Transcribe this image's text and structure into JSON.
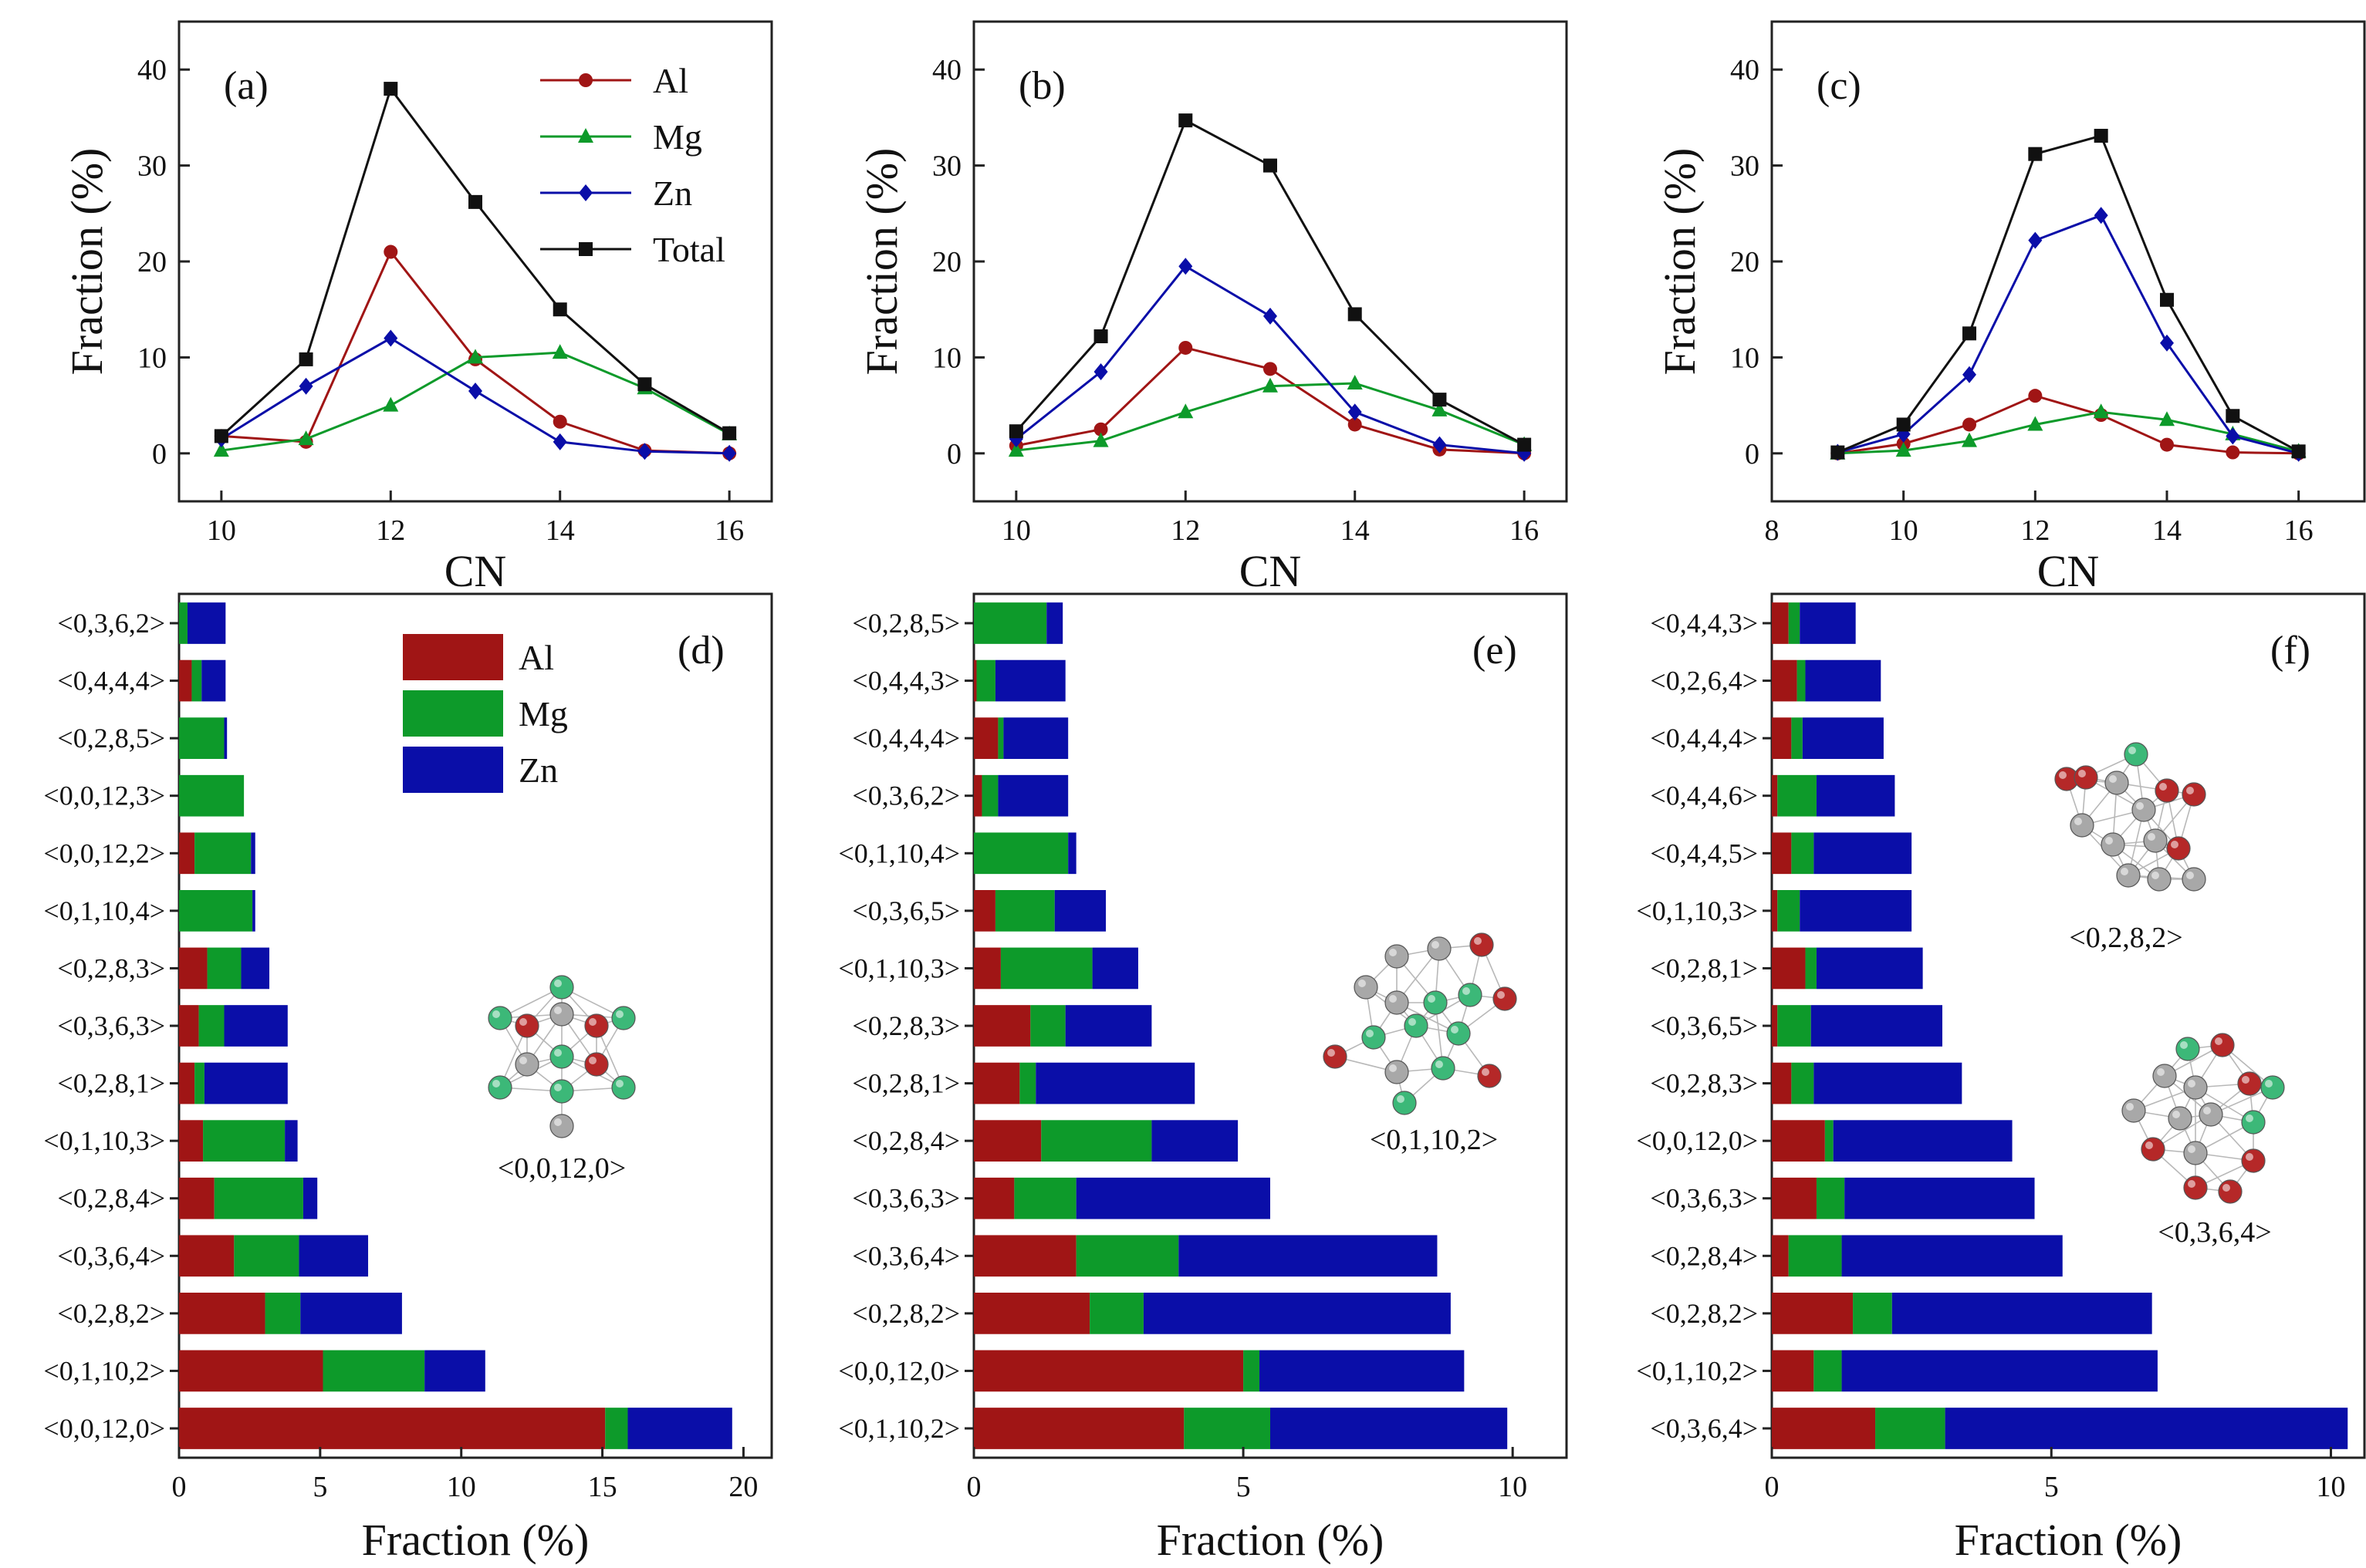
{
  "colors": {
    "Al": "#a01515",
    "Mg": "#0d9a2a",
    "Zn": "#0a0ea8",
    "Total": "#111111",
    "atom_al": "#b52828",
    "atom_mg": "#3cb878",
    "atom_gray": "#a8a8a8"
  },
  "chart_data": [
    {
      "id": "a",
      "type": "line",
      "panel_label": "(a)",
      "xlabel": "CN",
      "ylabel": "Fraction (%)",
      "xlim": [
        9.5,
        16.5
      ],
      "ylim": [
        -5,
        45
      ],
      "xticks": [
        10,
        12,
        14,
        16
      ],
      "yticks": [
        0,
        10,
        20,
        30,
        40
      ],
      "legend": true,
      "x": [
        10,
        11,
        12,
        13,
        14,
        15,
        16
      ],
      "series": [
        {
          "name": "Al",
          "marker": "circle",
          "values": [
            1.8,
            1.2,
            21.0,
            9.8,
            3.3,
            0.3,
            0.0
          ]
        },
        {
          "name": "Mg",
          "marker": "triangle",
          "values": [
            0.3,
            1.5,
            5.0,
            10.0,
            10.5,
            6.8,
            2.0
          ]
        },
        {
          "name": "Zn",
          "marker": "diamond",
          "values": [
            1.5,
            7.0,
            12.0,
            6.5,
            1.2,
            0.2,
            0.0
          ]
        },
        {
          "name": "Total",
          "marker": "square",
          "values": [
            1.8,
            9.8,
            38.0,
            26.2,
            15.0,
            7.2,
            2.1
          ]
        }
      ]
    },
    {
      "id": "b",
      "type": "line",
      "panel_label": "(b)",
      "xlabel": "CN",
      "ylabel": "Fraction (%)",
      "xlim": [
        9.5,
        16.5
      ],
      "ylim": [
        -5,
        45
      ],
      "xticks": [
        10,
        12,
        14,
        16
      ],
      "yticks": [
        0,
        10,
        20,
        30,
        40
      ],
      "legend": false,
      "x": [
        10,
        11,
        12,
        13,
        14,
        15,
        16
      ],
      "series": [
        {
          "name": "Al",
          "marker": "circle",
          "values": [
            0.8,
            2.5,
            11.0,
            8.8,
            3.0,
            0.4,
            0.0
          ]
        },
        {
          "name": "Mg",
          "marker": "triangle",
          "values": [
            0.3,
            1.3,
            4.3,
            7.0,
            7.3,
            4.5,
            0.9
          ]
        },
        {
          "name": "Zn",
          "marker": "diamond",
          "values": [
            1.5,
            8.5,
            19.5,
            14.3,
            4.3,
            0.9,
            0.0
          ]
        },
        {
          "name": "Total",
          "marker": "square",
          "values": [
            2.3,
            12.2,
            34.7,
            30.0,
            14.5,
            5.6,
            0.9
          ]
        }
      ]
    },
    {
      "id": "c",
      "type": "line",
      "panel_label": "(c)",
      "xlabel": "CN",
      "ylabel": "Fraction (%)",
      "xlim": [
        8,
        17
      ],
      "ylim": [
        -5,
        45
      ],
      "xticks": [
        8,
        10,
        12,
        14,
        16
      ],
      "yticks": [
        0,
        10,
        20,
        30,
        40
      ],
      "legend": false,
      "x": [
        9,
        10,
        11,
        12,
        13,
        14,
        15,
        16
      ],
      "series": [
        {
          "name": "Al",
          "marker": "circle",
          "values": [
            0.0,
            1.0,
            3.0,
            6.0,
            4.0,
            0.9,
            0.1,
            0.0
          ]
        },
        {
          "name": "Mg",
          "marker": "triangle",
          "values": [
            0.0,
            0.3,
            1.3,
            3.0,
            4.3,
            3.5,
            2.0,
            0.2
          ]
        },
        {
          "name": "Zn",
          "marker": "diamond",
          "values": [
            0.1,
            2.0,
            8.2,
            22.2,
            24.8,
            11.5,
            1.8,
            0.0
          ]
        },
        {
          "name": "Total",
          "marker": "square",
          "values": [
            0.1,
            3.0,
            12.5,
            31.2,
            33.1,
            16.0,
            3.9,
            0.2
          ]
        }
      ]
    },
    {
      "id": "d",
      "type": "bar",
      "orientation": "horizontal",
      "stacked": true,
      "panel_label": "(d)",
      "xlabel": "Fraction (%)",
      "xlim": [
        0,
        21
      ],
      "xticks": [
        0,
        5,
        10,
        15,
        20
      ],
      "legend": true,
      "categories": [
        "<0,3,6,2>",
        "<0,4,4,4>",
        "<0,2,8,5>",
        "<0,0,12,3>",
        "<0,0,12,2>",
        "<0,1,10,4>",
        "<0,2,8,3>",
        "<0,3,6,3>",
        "<0,2,8,1>",
        "<0,1,10,3>",
        "<0,2,8,4>",
        "<0,3,6,4>",
        "<0,2,8,2>",
        "<0,1,10,2>",
        "<0,0,12,0>"
      ],
      "series": [
        {
          "name": "Al",
          "values": [
            0.0,
            0.45,
            0.0,
            0.0,
            0.55,
            0.0,
            1.0,
            0.7,
            0.55,
            0.85,
            1.25,
            1.95,
            3.05,
            5.1,
            15.1
          ]
        },
        {
          "name": "Mg",
          "values": [
            0.3,
            0.35,
            1.6,
            2.3,
            2.0,
            2.6,
            1.2,
            0.9,
            0.35,
            2.9,
            3.15,
            2.3,
            1.25,
            3.6,
            0.8
          ]
        },
        {
          "name": "Zn",
          "values": [
            1.35,
            0.85,
            0.1,
            0.0,
            0.15,
            0.1,
            1.0,
            2.25,
            2.95,
            0.45,
            0.5,
            2.45,
            3.6,
            2.15,
            3.7
          ]
        }
      ],
      "cluster_labels": [
        "<0,0,12,0>"
      ]
    },
    {
      "id": "e",
      "type": "bar",
      "orientation": "horizontal",
      "stacked": true,
      "panel_label": "(e)",
      "xlabel": "Fraction (%)",
      "xlim": [
        0,
        11
      ],
      "xticks": [
        0,
        5,
        10
      ],
      "legend": false,
      "categories": [
        "<0,2,8,5>",
        "<0,4,4,3>",
        "<0,4,4,4>",
        "<0,3,6,2>",
        "<0,1,10,4>",
        "<0,3,6,5>",
        "<0,1,10,3>",
        "<0,2,8,3>",
        "<0,2,8,1>",
        "<0,2,8,4>",
        "<0,3,6,3>",
        "<0,3,6,4>",
        "<0,2,8,2>",
        "<0,0,12,0>",
        "<0,1,10,2>"
      ],
      "series": [
        {
          "name": "Al",
          "values": [
            0.0,
            0.05,
            0.45,
            0.15,
            0.0,
            0.4,
            0.5,
            1.05,
            0.85,
            1.25,
            0.75,
            1.9,
            2.15,
            5.0,
            3.9
          ]
        },
        {
          "name": "Mg",
          "values": [
            1.35,
            0.35,
            0.1,
            0.3,
            1.75,
            1.1,
            1.7,
            0.65,
            0.3,
            2.05,
            1.15,
            1.9,
            1.0,
            0.3,
            1.6
          ]
        },
        {
          "name": "Zn",
          "values": [
            0.3,
            1.3,
            1.2,
            1.3,
            0.15,
            0.95,
            0.85,
            1.6,
            2.95,
            1.6,
            3.6,
            4.8,
            5.7,
            3.8,
            4.4
          ]
        }
      ],
      "cluster_labels": [
        "<0,1,10,2>"
      ]
    },
    {
      "id": "f",
      "type": "bar",
      "orientation": "horizontal",
      "stacked": true,
      "panel_label": "(f)",
      "xlabel": "Fraction (%)",
      "xlim": [
        0,
        10.6
      ],
      "xticks": [
        0,
        5,
        10
      ],
      "legend": false,
      "categories": [
        "<0,4,4,3>",
        "<0,2,6,4>",
        "<0,4,4,4>",
        "<0,4,4,6>",
        "<0,4,4,5>",
        "<0,1,10,3>",
        "<0,2,8,1>",
        "<0,3,6,5>",
        "<0,2,8,3>",
        "<0,0,12,0>",
        "<0,3,6,3>",
        "<0,2,8,4>",
        "<0,2,8,2>",
        "<0,1,10,2>",
        "<0,3,6,4>"
      ],
      "series": [
        {
          "name": "Al",
          "values": [
            0.3,
            0.45,
            0.35,
            0.1,
            0.35,
            0.1,
            0.6,
            0.1,
            0.35,
            0.95,
            0.8,
            0.3,
            1.45,
            0.75,
            1.85
          ]
        },
        {
          "name": "Mg",
          "values": [
            0.2,
            0.15,
            0.2,
            0.7,
            0.4,
            0.4,
            0.2,
            0.6,
            0.4,
            0.15,
            0.5,
            0.95,
            0.7,
            0.5,
            1.25
          ]
        },
        {
          "name": "Zn",
          "values": [
            1.0,
            1.35,
            1.45,
            1.4,
            1.75,
            2.0,
            1.9,
            2.35,
            2.65,
            3.2,
            3.4,
            3.95,
            4.65,
            5.65,
            7.2
          ]
        }
      ],
      "cluster_labels": [
        "<0,2,8,2>",
        "<0,3,6,4>"
      ]
    }
  ]
}
